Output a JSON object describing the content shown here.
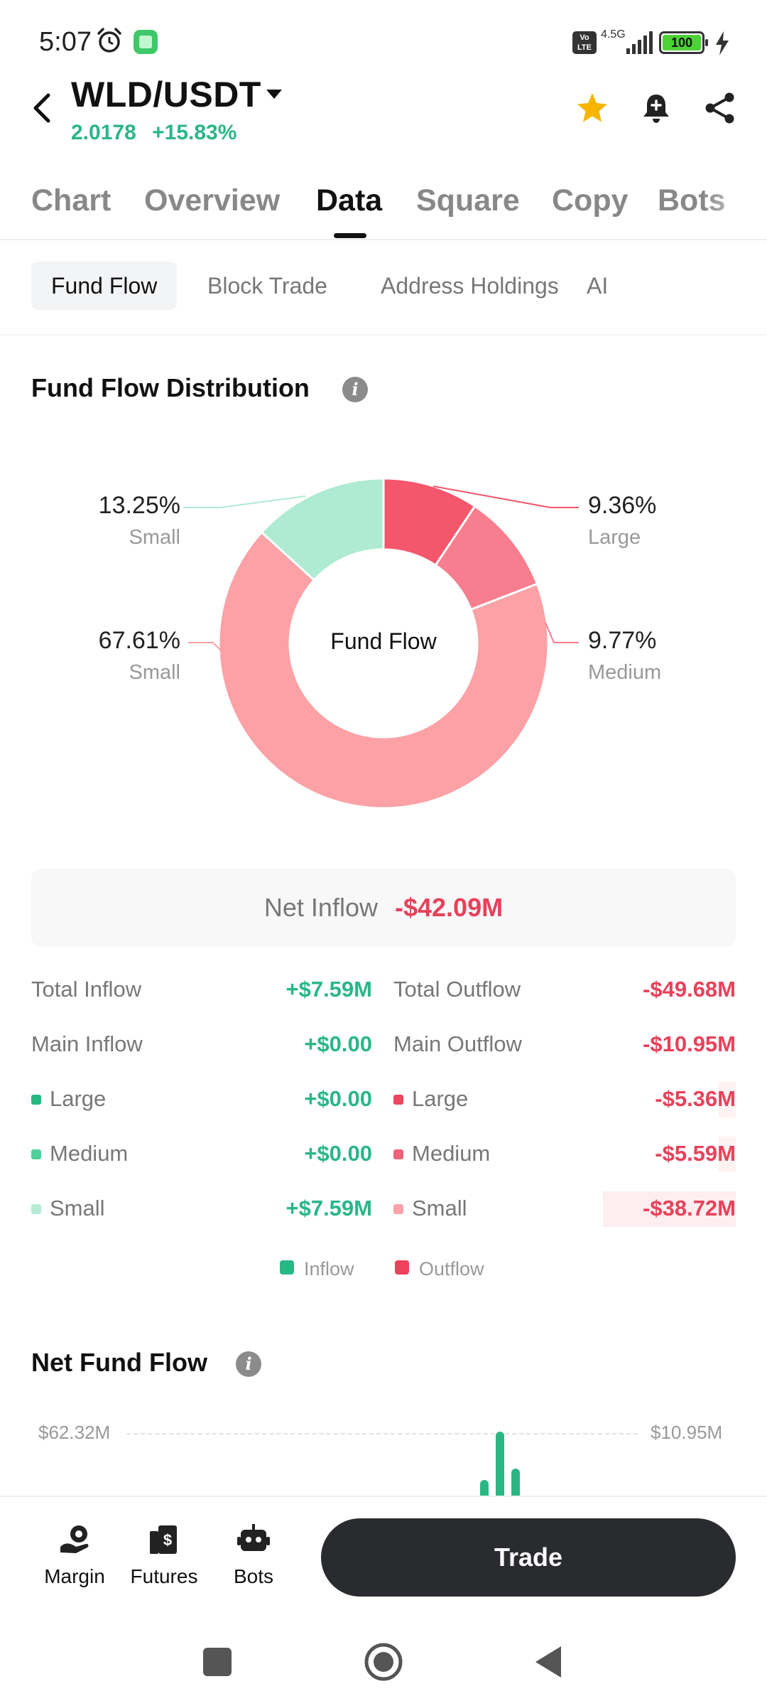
{
  "status_bar": {
    "time": "5:07",
    "volte": "Vo LTE",
    "network": "4.5G",
    "battery": "100",
    "icons": [
      "alarm-icon",
      "app-icon",
      "signal-icon",
      "battery-icon",
      "charging-icon"
    ]
  },
  "header": {
    "pair": "WLD/USDT",
    "price": "2.0178",
    "change": "+15.83%",
    "icons": [
      "back-arrow-icon",
      "star-icon",
      "bell-plus-icon",
      "share-icon"
    ]
  },
  "main_tabs": [
    "Chart",
    "Overview",
    "Data",
    "Square",
    "Copy",
    "Bots"
  ],
  "main_tab_active": "Data",
  "sub_tabs": [
    "Fund Flow",
    "Block Trade",
    "Address Holdings",
    "AI"
  ],
  "sub_tab_active": "Fund Flow",
  "distribution": {
    "title": "Fund Flow Distribution",
    "center_label": "Fund Flow",
    "labels": [
      {
        "pct": "13.25%",
        "name": "Small"
      },
      {
        "pct": "67.61%",
        "name": "Small"
      },
      {
        "pct": "9.36%",
        "name": "Large"
      },
      {
        "pct": "9.77%",
        "name": "Medium"
      }
    ]
  },
  "chart_data": [
    {
      "type": "pie",
      "title": "",
      "center_label": "Fund Flow",
      "slices": [
        {
          "label": "Large",
          "value": 9.36,
          "flow": "Outflow",
          "color": "#f4566b"
        },
        {
          "label": "Medium",
          "value": 9.77,
          "flow": "Outflow",
          "color": "#f77e8e"
        },
        {
          "label": "Small",
          "value": 67.61,
          "flow": "Outflow",
          "color": "#fca1a6"
        },
        {
          "label": "Small",
          "value": 13.25,
          "flow": "Inflow",
          "color": "#aeebd2"
        }
      ]
    },
    {
      "type": "bar",
      "title": "Net Fund Flow",
      "y_top_left": "$62.32M",
      "y_top_right": "$10.95M",
      "values": [],
      "note_visible": "only partial bars visible"
    }
  ],
  "net": {
    "label": "Net Inflow",
    "value": "-$42.09M"
  },
  "flows": {
    "inflow": [
      {
        "label": "Total Inflow",
        "value": "+$7.59M"
      },
      {
        "label": "Main Inflow",
        "value": "+$0.00"
      },
      {
        "label": "Large",
        "value": "+$0.00",
        "color": "#23b87f"
      },
      {
        "label": "Medium",
        "value": "+$0.00",
        "color": "#4fcf9a"
      },
      {
        "label": "Small",
        "value": "+$7.59M",
        "color": "#b7ecd4"
      }
    ],
    "outflow": [
      {
        "label": "Total Outflow",
        "value": "-$49.68M"
      },
      {
        "label": "Main Outflow",
        "value": "-$10.95M"
      },
      {
        "label": "Large",
        "value": "-$5.36M",
        "color": "#ee4560",
        "bar": 0.1
      },
      {
        "label": "Medium",
        "value": "-$5.59M",
        "color": "#f1617a",
        "bar": 0.1
      },
      {
        "label": "Small",
        "value": "-$38.72M",
        "color": "#fba2a8",
        "bar": 0.78
      }
    ]
  },
  "legend": {
    "inflow": "Inflow",
    "outflow": "Outflow",
    "inflow_color": "#2ab785",
    "outflow_color": "#f0415c"
  },
  "net_fund_flow": {
    "title": "Net Fund Flow",
    "left_axis": "$62.32M",
    "right_axis": "$10.95M"
  },
  "bottom": {
    "items": [
      "Margin",
      "Futures",
      "Bots"
    ],
    "trade": "Trade"
  },
  "colors": {
    "green": "#2ab785",
    "red": "#e8415a",
    "star": "#f7b500"
  }
}
